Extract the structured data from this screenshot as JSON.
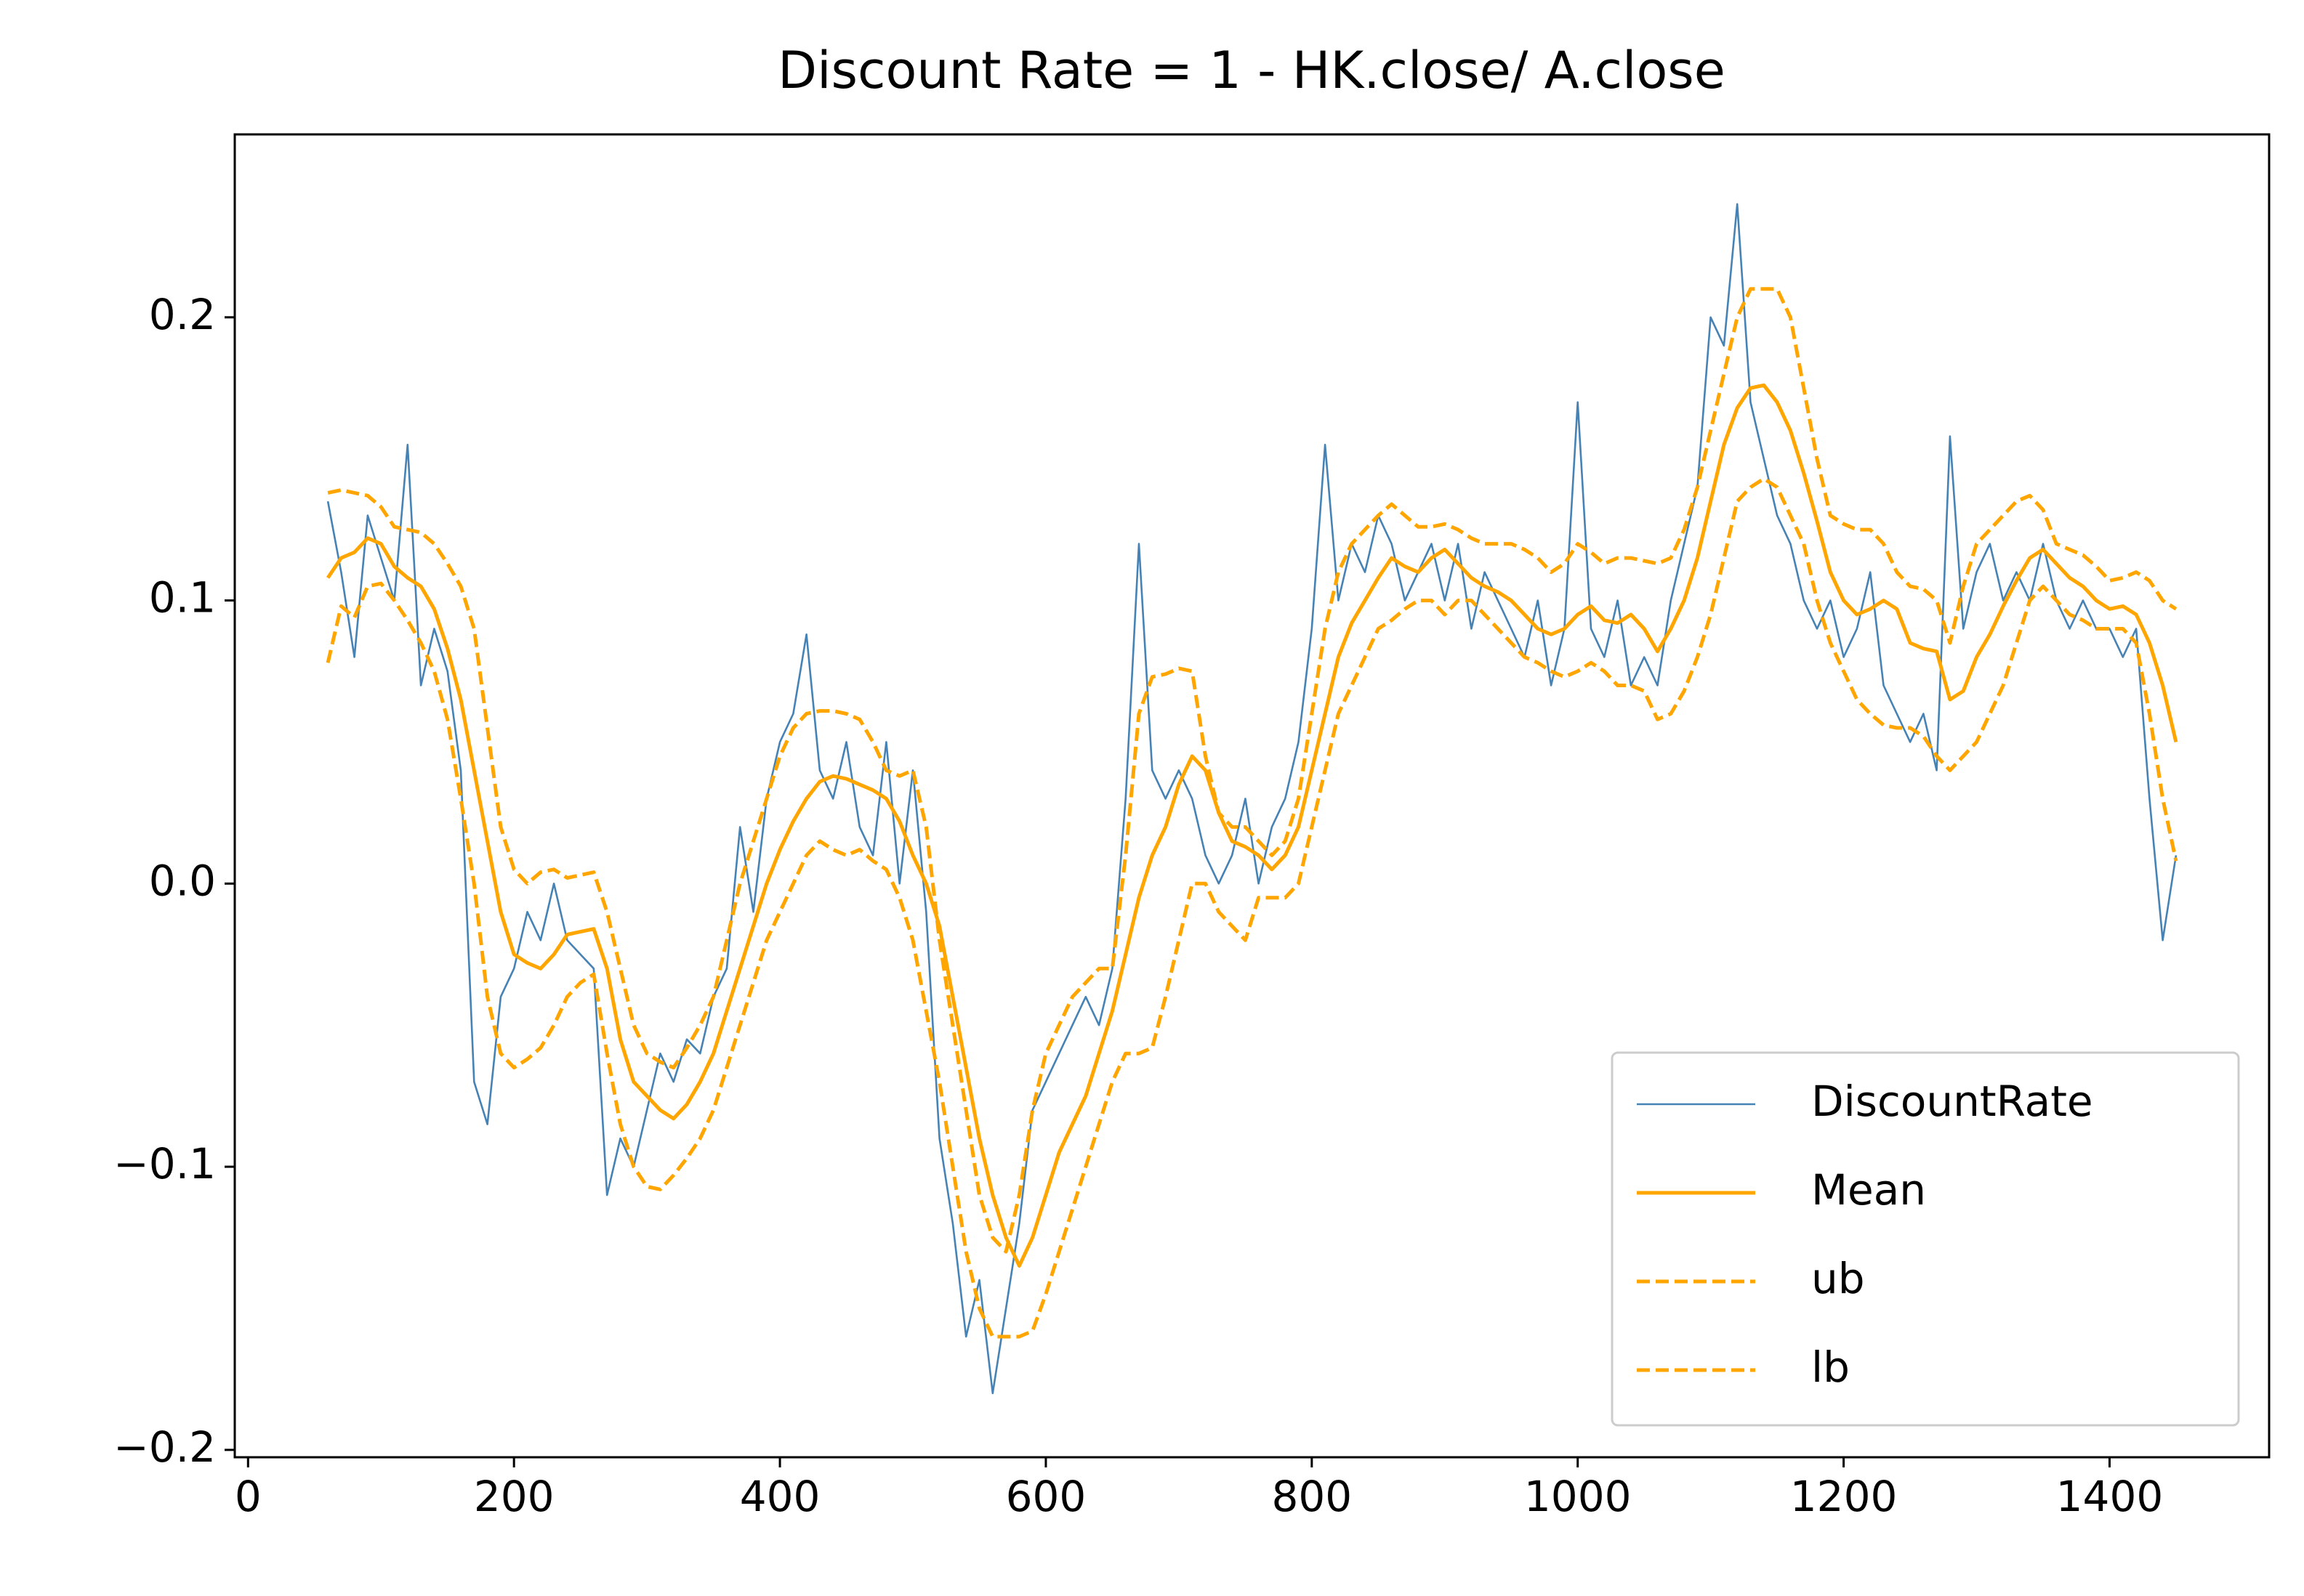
{
  "chart_data": {
    "type": "line",
    "title": "Discount Rate = 1 - HK.close/ A.close",
    "x": [
      60,
      70,
      80,
      90,
      100,
      110,
      120,
      130,
      140,
      150,
      160,
      170,
      180,
      190,
      200,
      210,
      220,
      230,
      240,
      250,
      260,
      270,
      280,
      290,
      300,
      310,
      320,
      330,
      340,
      350,
      360,
      370,
      380,
      390,
      400,
      410,
      420,
      430,
      440,
      450,
      460,
      470,
      480,
      490,
      500,
      510,
      520,
      530,
      540,
      550,
      560,
      570,
      580,
      590,
      600,
      610,
      620,
      630,
      640,
      650,
      660,
      670,
      680,
      690,
      700,
      710,
      720,
      730,
      740,
      750,
      760,
      770,
      780,
      790,
      800,
      810,
      820,
      830,
      840,
      850,
      860,
      870,
      880,
      890,
      900,
      910,
      920,
      930,
      940,
      950,
      960,
      970,
      980,
      990,
      1000,
      1010,
      1020,
      1030,
      1040,
      1050,
      1060,
      1070,
      1080,
      1090,
      1100,
      1110,
      1120,
      1130,
      1140,
      1150,
      1160,
      1170,
      1180,
      1190,
      1200,
      1210,
      1220,
      1230,
      1240,
      1250,
      1260,
      1270,
      1280,
      1290,
      1300,
      1310,
      1320,
      1330,
      1340,
      1350,
      1360,
      1370,
      1380,
      1390,
      1400,
      1410,
      1420,
      1430,
      1440,
      1450
    ],
    "series": [
      {
        "name": "DiscountRate",
        "color": "#4682b4",
        "style": "solid",
        "width": 2.6,
        "values": [
          0.135,
          0.11,
          0.08,
          0.13,
          0.115,
          0.1,
          0.155,
          0.07,
          0.09,
          0.075,
          0.04,
          -0.07,
          -0.085,
          -0.04,
          -0.03,
          -0.01,
          -0.02,
          0.0,
          -0.02,
          -0.025,
          -0.03,
          -0.11,
          -0.09,
          -0.1,
          -0.08,
          -0.06,
          -0.07,
          -0.055,
          -0.06,
          -0.04,
          -0.03,
          0.02,
          -0.01,
          0.03,
          0.05,
          0.06,
          0.088,
          0.04,
          0.03,
          0.05,
          0.02,
          0.01,
          0.05,
          0.0,
          0.04,
          -0.01,
          -0.09,
          -0.12,
          -0.16,
          -0.14,
          -0.18,
          -0.15,
          -0.12,
          -0.08,
          -0.07,
          -0.06,
          -0.05,
          -0.04,
          -0.05,
          -0.03,
          0.03,
          0.12,
          0.04,
          0.03,
          0.04,
          0.03,
          0.01,
          0.0,
          0.01,
          0.03,
          0.0,
          0.02,
          0.03,
          0.05,
          0.09,
          0.155,
          0.1,
          0.12,
          0.11,
          0.13,
          0.12,
          0.1,
          0.11,
          0.12,
          0.1,
          0.12,
          0.09,
          0.11,
          0.1,
          0.09,
          0.08,
          0.1,
          0.07,
          0.09,
          0.17,
          0.09,
          0.08,
          0.1,
          0.07,
          0.08,
          0.07,
          0.1,
          0.12,
          0.14,
          0.2,
          0.19,
          0.24,
          0.17,
          0.15,
          0.13,
          0.12,
          0.1,
          0.09,
          0.1,
          0.08,
          0.09,
          0.11,
          0.07,
          0.06,
          0.05,
          0.06,
          0.04,
          0.158,
          0.09,
          0.11,
          0.12,
          0.1,
          0.11,
          0.1,
          0.12,
          0.1,
          0.09,
          0.1,
          0.09,
          0.09,
          0.08,
          0.09,
          0.03,
          -0.02,
          0.01
        ]
      },
      {
        "name": "Mean",
        "color": "#ffa500",
        "style": "solid",
        "width": 5,
        "values": [
          0.108,
          0.115,
          0.117,
          0.122,
          0.12,
          0.112,
          0.108,
          0.105,
          0.097,
          0.083,
          0.065,
          0.04,
          0.015,
          -0.01,
          -0.025,
          -0.028,
          -0.03,
          -0.025,
          -0.018,
          -0.017,
          -0.016,
          -0.03,
          -0.055,
          -0.07,
          -0.075,
          -0.08,
          -0.083,
          -0.078,
          -0.07,
          -0.06,
          -0.045,
          -0.03,
          -0.015,
          0.0,
          0.012,
          0.022,
          0.03,
          0.036,
          0.038,
          0.037,
          0.035,
          0.033,
          0.03,
          0.022,
          0.01,
          0.0,
          -0.015,
          -0.04,
          -0.065,
          -0.09,
          -0.11,
          -0.125,
          -0.135,
          -0.125,
          -0.11,
          -0.095,
          -0.085,
          -0.075,
          -0.06,
          -0.045,
          -0.025,
          -0.005,
          0.01,
          0.02,
          0.035,
          0.045,
          0.04,
          0.025,
          0.015,
          0.013,
          0.01,
          0.005,
          0.01,
          0.02,
          0.04,
          0.06,
          0.08,
          0.092,
          0.1,
          0.108,
          0.115,
          0.112,
          0.11,
          0.115,
          0.118,
          0.113,
          0.108,
          0.105,
          0.103,
          0.1,
          0.095,
          0.09,
          0.088,
          0.09,
          0.095,
          0.098,
          0.093,
          0.092,
          0.095,
          0.09,
          0.082,
          0.09,
          0.1,
          0.115,
          0.135,
          0.155,
          0.168,
          0.175,
          0.176,
          0.17,
          0.16,
          0.145,
          0.128,
          0.11,
          0.1,
          0.095,
          0.097,
          0.1,
          0.097,
          0.085,
          0.083,
          0.082,
          0.065,
          0.068,
          0.08,
          0.088,
          0.098,
          0.107,
          0.115,
          0.118,
          0.113,
          0.108,
          0.105,
          0.1,
          0.097,
          0.098,
          0.095,
          0.085,
          0.07,
          0.05
        ]
      },
      {
        "name": "ub",
        "color": "#ffa500",
        "style": "dashed",
        "width": 5,
        "values": [
          0.138,
          0.139,
          0.138,
          0.137,
          0.133,
          0.126,
          0.125,
          0.124,
          0.12,
          0.113,
          0.105,
          0.09,
          0.055,
          0.02,
          0.005,
          0.0,
          0.004,
          0.005,
          0.002,
          0.003,
          0.004,
          -0.01,
          -0.03,
          -0.05,
          -0.06,
          -0.063,
          -0.065,
          -0.058,
          -0.05,
          -0.04,
          -0.02,
          0.0,
          0.015,
          0.03,
          0.045,
          0.055,
          0.06,
          0.061,
          0.061,
          0.06,
          0.058,
          0.05,
          0.04,
          0.038,
          0.04,
          0.02,
          -0.02,
          -0.05,
          -0.08,
          -0.11,
          -0.125,
          -0.13,
          -0.11,
          -0.08,
          -0.06,
          -0.05,
          -0.04,
          -0.035,
          -0.03,
          -0.03,
          0.01,
          0.06,
          0.073,
          0.074,
          0.076,
          0.075,
          0.045,
          0.025,
          0.02,
          0.02,
          0.015,
          0.01,
          0.015,
          0.03,
          0.06,
          0.09,
          0.11,
          0.12,
          0.125,
          0.13,
          0.134,
          0.13,
          0.126,
          0.126,
          0.127,
          0.125,
          0.122,
          0.12,
          0.12,
          0.12,
          0.118,
          0.115,
          0.11,
          0.113,
          0.12,
          0.117,
          0.113,
          0.115,
          0.115,
          0.114,
          0.113,
          0.115,
          0.125,
          0.14,
          0.16,
          0.18,
          0.2,
          0.21,
          0.21,
          0.21,
          0.2,
          0.175,
          0.15,
          0.13,
          0.127,
          0.125,
          0.125,
          0.12,
          0.11,
          0.105,
          0.104,
          0.1,
          0.085,
          0.105,
          0.12,
          0.125,
          0.13,
          0.135,
          0.137,
          0.132,
          0.12,
          0.118,
          0.116,
          0.112,
          0.107,
          0.108,
          0.11,
          0.107,
          0.1,
          0.097
        ]
      },
      {
        "name": "lb",
        "color": "#ffa500",
        "style": "dashed",
        "width": 5,
        "values": [
          0.078,
          0.098,
          0.094,
          0.105,
          0.106,
          0.1,
          0.093,
          0.085,
          0.075,
          0.058,
          0.03,
          0.0,
          -0.04,
          -0.06,
          -0.065,
          -0.062,
          -0.058,
          -0.05,
          -0.04,
          -0.035,
          -0.032,
          -0.06,
          -0.085,
          -0.1,
          -0.107,
          -0.108,
          -0.103,
          -0.097,
          -0.09,
          -0.08,
          -0.065,
          -0.05,
          -0.035,
          -0.02,
          -0.01,
          0.0,
          0.01,
          0.015,
          0.012,
          0.01,
          0.012,
          0.008,
          0.005,
          -0.005,
          -0.02,
          -0.045,
          -0.07,
          -0.1,
          -0.13,
          -0.15,
          -0.16,
          -0.16,
          -0.16,
          -0.158,
          -0.145,
          -0.13,
          -0.115,
          -0.1,
          -0.085,
          -0.07,
          -0.06,
          -0.06,
          -0.058,
          -0.04,
          -0.02,
          0.0,
          0.0,
          -0.01,
          -0.015,
          -0.02,
          -0.005,
          -0.005,
          -0.005,
          0.0,
          0.02,
          0.04,
          0.06,
          0.07,
          0.08,
          0.09,
          0.093,
          0.097,
          0.1,
          0.1,
          0.095,
          0.1,
          0.1,
          0.095,
          0.09,
          0.085,
          0.08,
          0.078,
          0.075,
          0.073,
          0.075,
          0.078,
          0.075,
          0.07,
          0.07,
          0.068,
          0.058,
          0.06,
          0.068,
          0.08,
          0.095,
          0.115,
          0.135,
          0.14,
          0.143,
          0.14,
          0.13,
          0.12,
          0.1,
          0.085,
          0.075,
          0.065,
          0.06,
          0.056,
          0.055,
          0.055,
          0.052,
          0.045,
          0.04,
          0.045,
          0.05,
          0.06,
          0.07,
          0.085,
          0.1,
          0.105,
          0.1,
          0.095,
          0.093,
          0.09,
          0.09,
          0.09,
          0.085,
          0.06,
          0.03,
          0.008
        ]
      }
    ],
    "xlim": [
      -10,
      1520
    ],
    "ylim": [
      -0.2026,
      0.2646
    ],
    "xticks": [
      0,
      200,
      400,
      600,
      800,
      1000,
      1200,
      1400
    ],
    "yticks": [
      {
        "value": -0.2,
        "label": "−0.2"
      },
      {
        "value": -0.1,
        "label": "−0.1"
      },
      {
        "value": 0.0,
        "label": "0.0"
      },
      0.1,
      0.2
    ],
    "legend": "lower right",
    "grid": false
  }
}
